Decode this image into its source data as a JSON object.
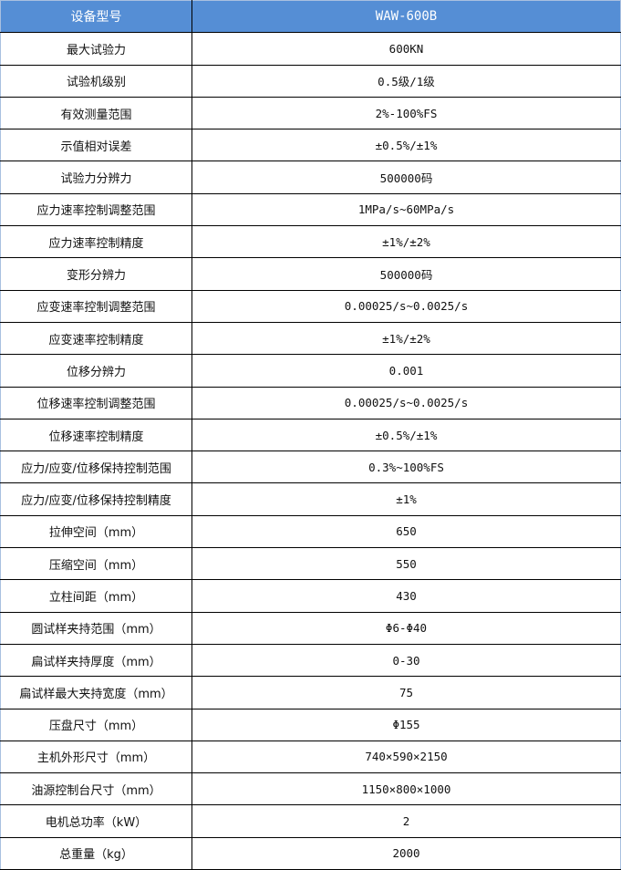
{
  "header": {
    "label": "设备型号",
    "value": "WAW-600B"
  },
  "colors": {
    "header_bg": "#558ed5",
    "header_text": "#ffffff"
  },
  "rows": [
    {
      "label": "最大试验力",
      "value": "600KN"
    },
    {
      "label": "试验机级别",
      "value": "0.5级/1级"
    },
    {
      "label": "有效测量范围",
      "value": "2%-100%FS"
    },
    {
      "label": "示值相对误差",
      "value": "±0.5%/±1%"
    },
    {
      "label": "试验力分辨力",
      "value": "500000码"
    },
    {
      "label": "应力速率控制调整范围",
      "value": "1MPa/s~60MPa/s"
    },
    {
      "label": "应力速率控制精度",
      "value": "±1%/±2%"
    },
    {
      "label": "变形分辨力",
      "value": "500000码"
    },
    {
      "label": "应变速率控制调整范围",
      "value": "0.00025/s~0.0025/s"
    },
    {
      "label": "应变速率控制精度",
      "value": "±1%/±2%"
    },
    {
      "label": "位移分辨力",
      "value": "0.001"
    },
    {
      "label": "位移速率控制调整范围",
      "value": "0.00025/s~0.0025/s"
    },
    {
      "label": "位移速率控制精度",
      "value": "±0.5%/±1%"
    },
    {
      "label": "应力/应变/位移保持控制范围",
      "value": "0.3%~100%FS"
    },
    {
      "label": "应力/应变/位移保持控制精度",
      "value": "±1%"
    },
    {
      "label": "拉伸空间（mm）",
      "value": "650"
    },
    {
      "label": "压缩空间（mm）",
      "value": "550"
    },
    {
      "label": "立柱间距（mm）",
      "value": "430"
    },
    {
      "label": "圆试样夹持范围（mm）",
      "value": "Φ6-Φ40"
    },
    {
      "label": "扁试样夹持厚度（mm）",
      "value": "0-30"
    },
    {
      "label": "扁试样最大夹持宽度（mm）",
      "value": "75"
    },
    {
      "label": "压盘尺寸（mm）",
      "value": "Φ155"
    },
    {
      "label": "主机外形尺寸（mm）",
      "value": "740×590×2150"
    },
    {
      "label": "油源控制台尺寸（mm）",
      "value": "1150×800×1000"
    },
    {
      "label": "电机总功率（kW）",
      "value": "2"
    },
    {
      "label": "总重量（kg）",
      "value": "2000"
    }
  ]
}
